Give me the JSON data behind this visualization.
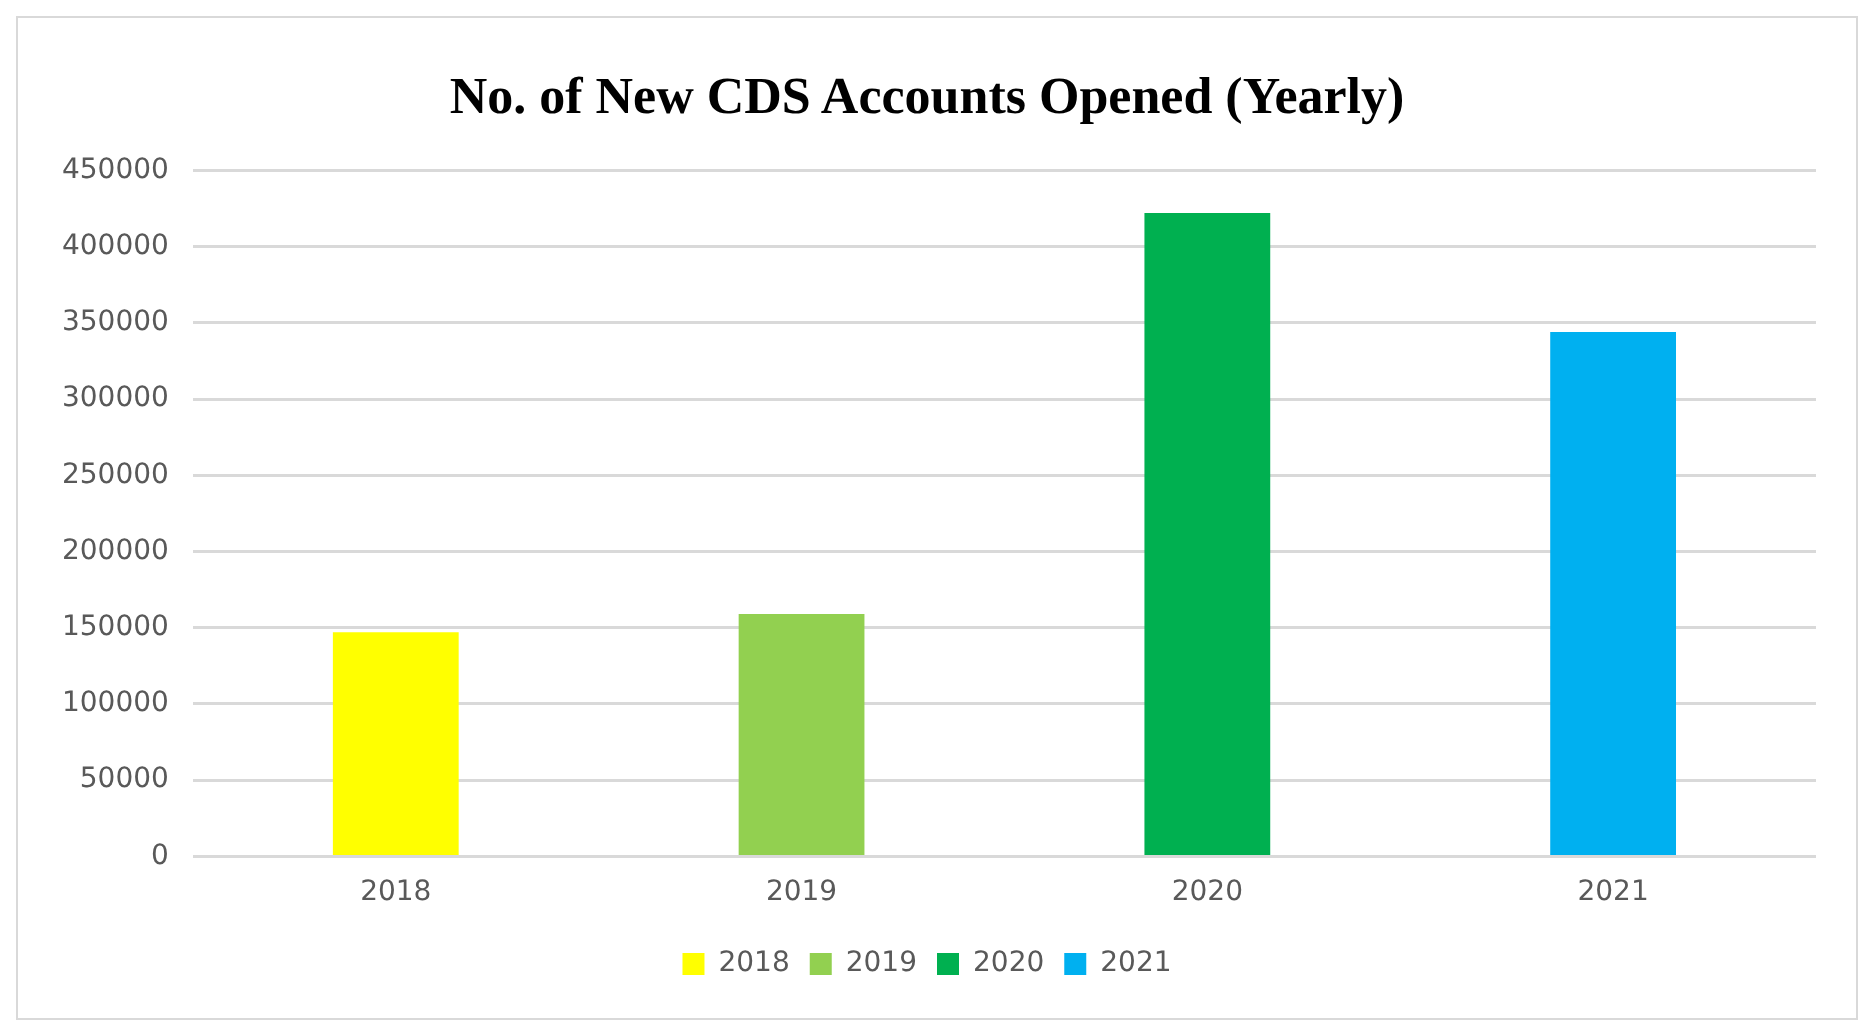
{
  "chart_data": {
    "type": "bar",
    "title": "No. of New CDS Accounts Opened (Yearly)",
    "categories": [
      "2018",
      "2019",
      "2020",
      "2021"
    ],
    "series": [
      {
        "name": "2018",
        "color": "#ffff00",
        "values": [
          147000,
          null,
          null,
          null
        ]
      },
      {
        "name": "2019",
        "color": "#92d050",
        "values": [
          null,
          159000,
          null,
          null
        ]
      },
      {
        "name": "2020",
        "color": "#00b050",
        "values": [
          null,
          null,
          422000,
          null
        ]
      },
      {
        "name": "2021",
        "color": "#00b0f0",
        "values": [
          null,
          null,
          null,
          344000
        ]
      }
    ],
    "ylim": [
      0,
      450000
    ],
    "yticks": [
      0,
      50000,
      100000,
      150000,
      200000,
      250000,
      300000,
      350000,
      400000,
      450000
    ],
    "grid": "y",
    "legend": "bottom"
  }
}
